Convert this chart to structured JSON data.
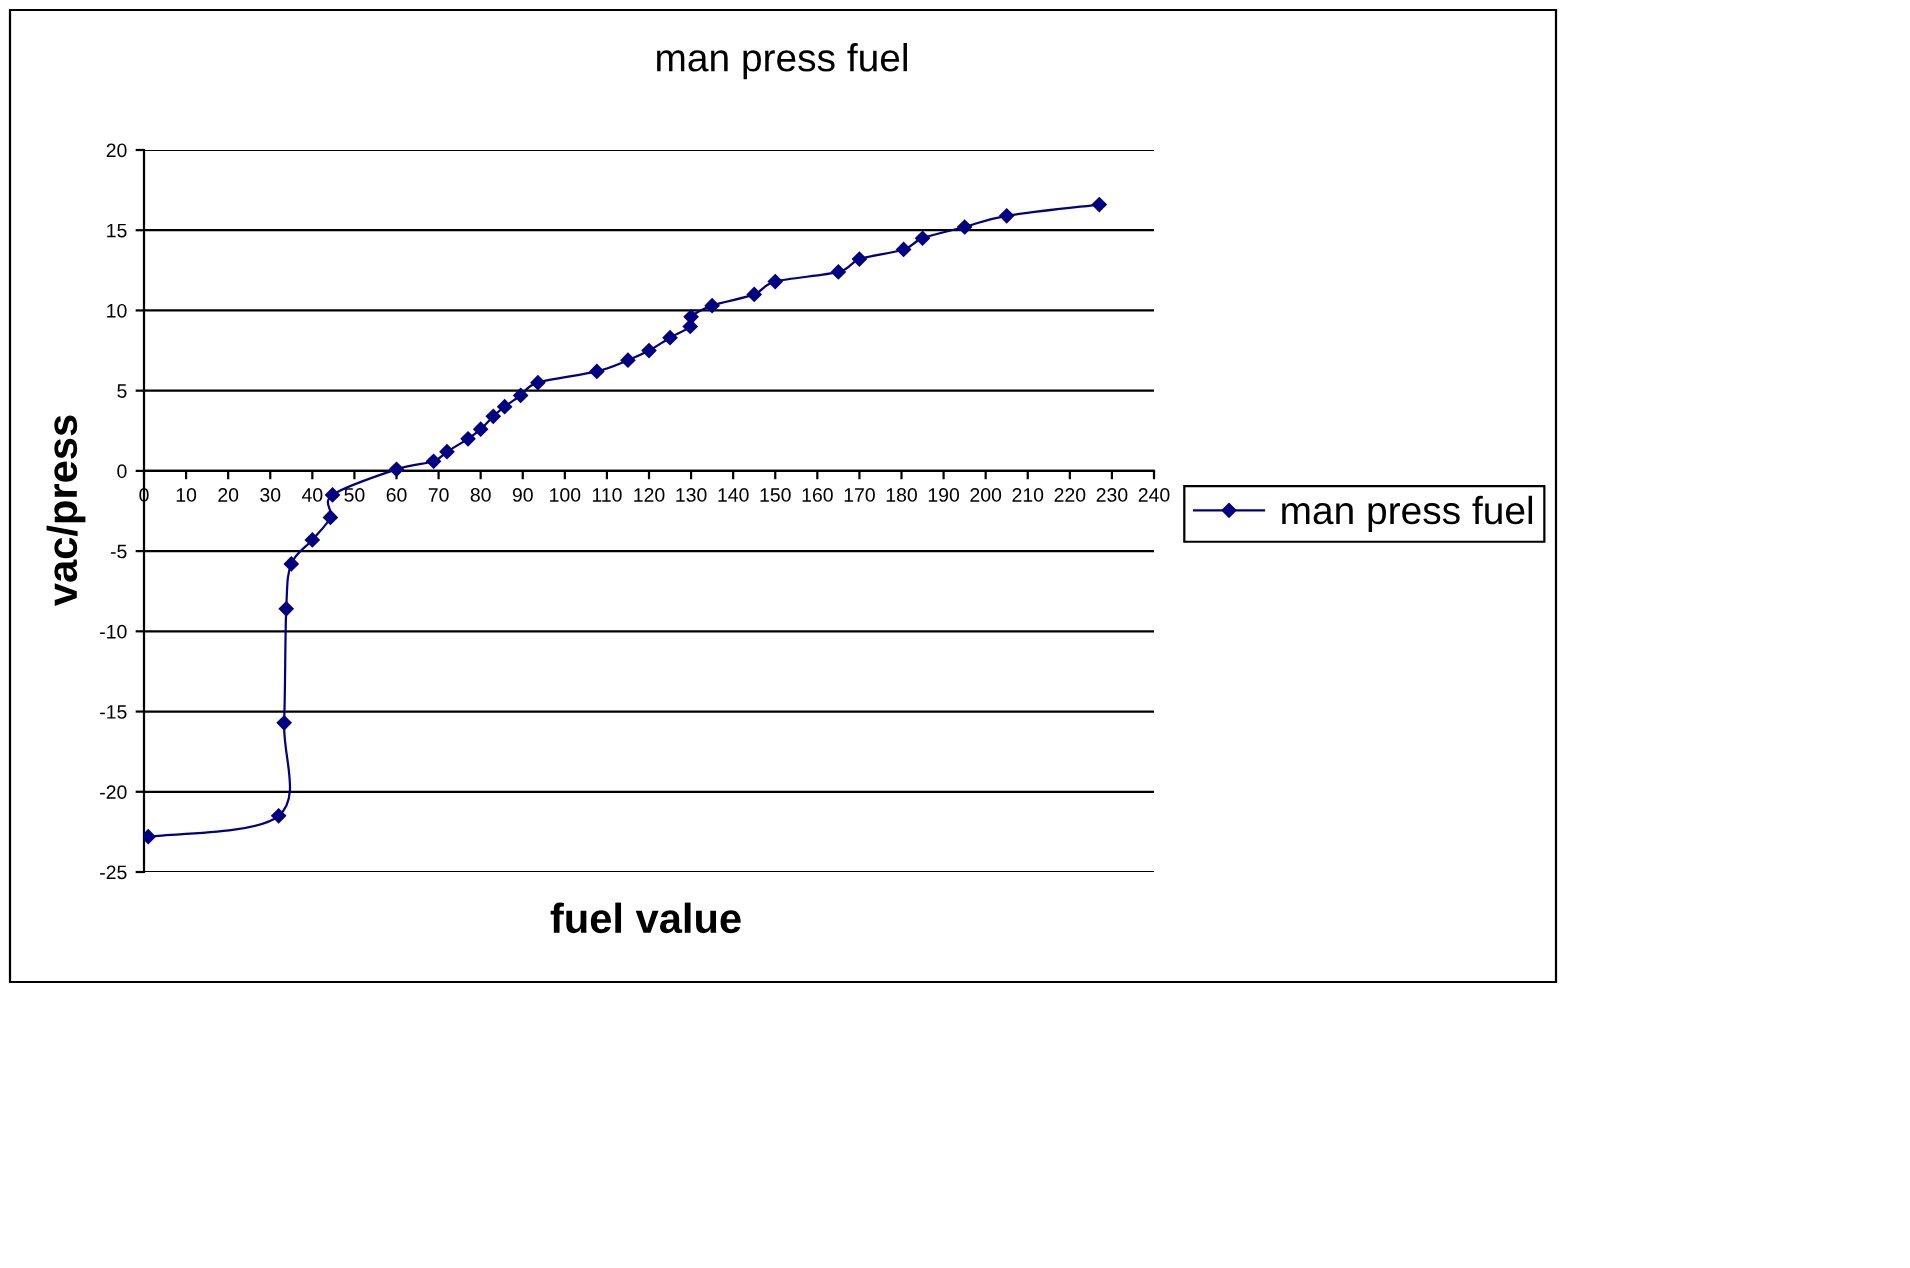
{
  "chart_data": {
    "type": "line",
    "title": "man press fuel",
    "xlabel": "fuel value",
    "ylabel": "vac/press",
    "x": [
      1,
      32,
      33.3,
      33.8,
      35,
      40,
      44.3,
      44.8,
      60,
      68.8,
      72,
      77,
      80,
      83,
      85.7,
      89.5,
      93.6,
      107.6,
      115,
      120,
      125,
      129.8,
      130,
      135,
      145,
      150,
      165,
      170,
      180.5,
      185,
      195,
      205,
      227
    ],
    "series": [
      {
        "name": "man press fuel",
        "color": "#000080",
        "values": [
          -22.8,
          -21.5,
          -15.7,
          -8.6,
          -5.8,
          -4.3,
          -2.9,
          -1.5,
          0.1,
          0.6,
          1.2,
          2.0,
          2.6,
          3.4,
          4.0,
          4.7,
          5.5,
          6.2,
          6.9,
          7.5,
          8.3,
          9.0,
          9.6,
          10.3,
          11.0,
          11.8,
          12.4,
          13.2,
          13.8,
          14.5,
          15.2,
          15.9,
          16.6
        ]
      }
    ],
    "xlim": [
      0,
      240
    ],
    "xticks": [
      0,
      10,
      20,
      30,
      40,
      50,
      60,
      70,
      80,
      90,
      100,
      110,
      120,
      130,
      140,
      150,
      160,
      170,
      180,
      190,
      200,
      210,
      220,
      230,
      240
    ],
    "ylim": [
      -25,
      20
    ],
    "yticks": [
      -25,
      -20,
      -15,
      -10,
      -5,
      0,
      5,
      10,
      15,
      20
    ],
    "grid": "y",
    "legend": "right",
    "marker": "diamond",
    "line_style": "solid"
  }
}
